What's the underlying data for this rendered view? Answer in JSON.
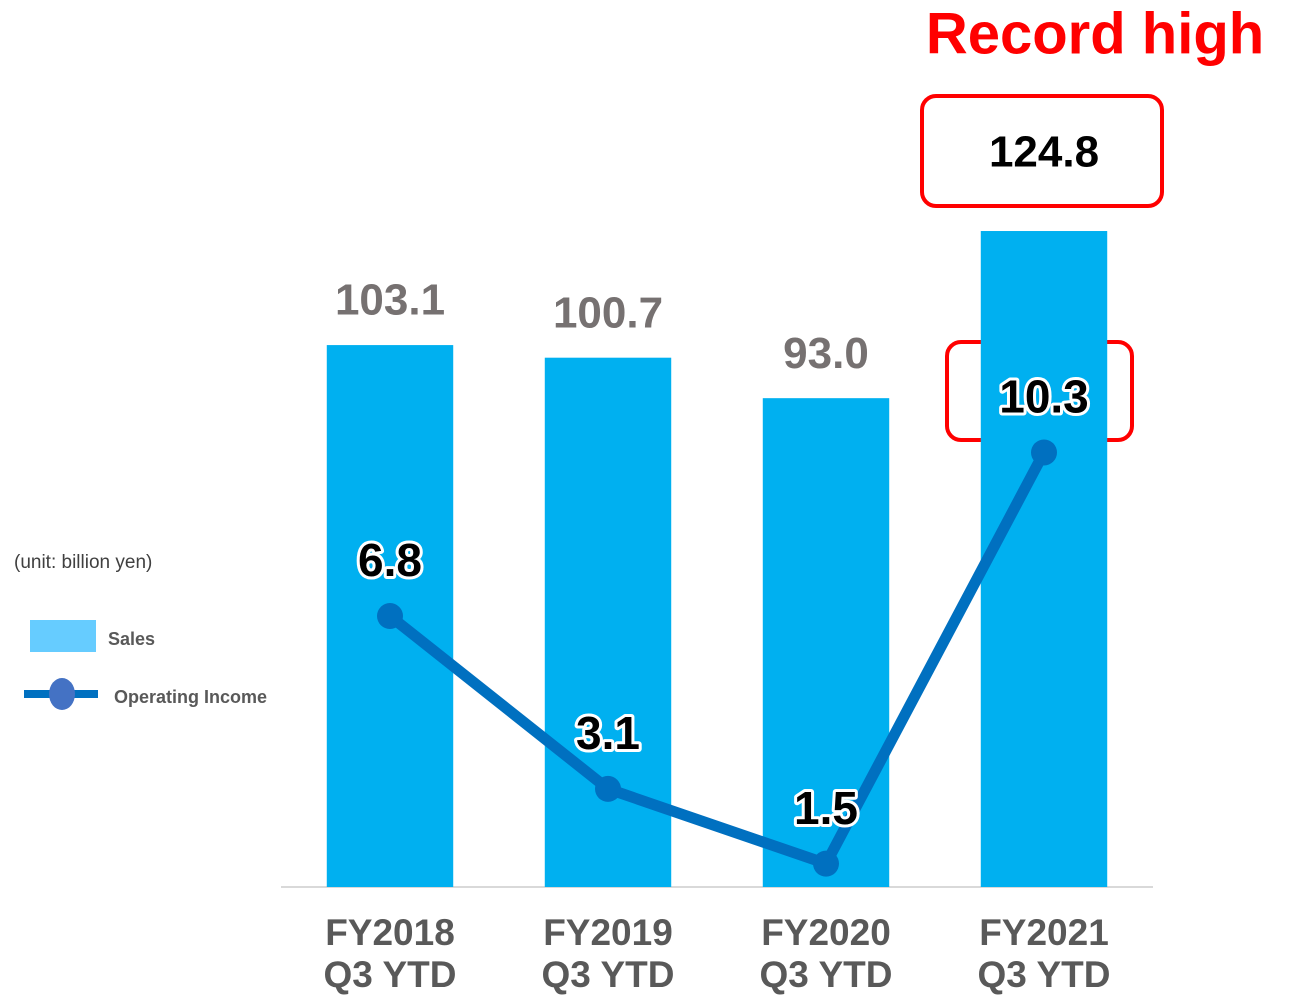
{
  "chart_data": {
    "type": "bar-line",
    "annotations": [
      "Record high",
      "(unit: billion yen)"
    ],
    "categories": [
      "FY2018\nQ3 YTD",
      "FY2019\nQ3 YTD",
      "FY2020\nQ3 YTD",
      "FY2021\nQ3 YTD"
    ],
    "series": [
      {
        "name": "Sales",
        "type": "bar",
        "color": "#00b0f0",
        "legend_color": "#66ccff",
        "values": [
          103.1,
          100.7,
          93.0,
          124.8
        ],
        "value_labels": [
          "103.1",
          "100.7",
          "93.0",
          "124.8"
        ]
      },
      {
        "name": "Operating Income",
        "type": "line",
        "axis": "y2",
        "color": "#0070c0",
        "marker_color": "#4472c4",
        "values": [
          6.8,
          3.1,
          1.5,
          10.3
        ]
      }
    ],
    "ylim": [
      0,
      160
    ],
    "y2lim": [
      1,
      19
    ],
    "grid": false
  }
}
